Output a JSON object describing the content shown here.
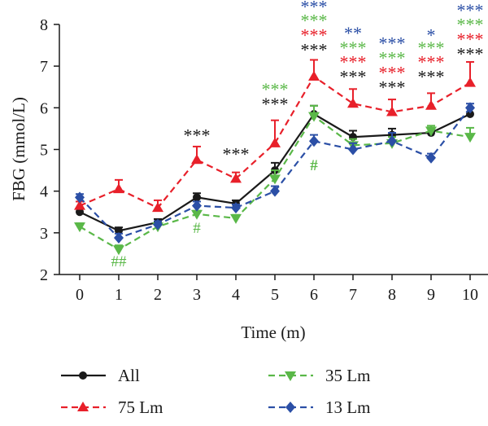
{
  "chart_data": {
    "type": "line",
    "ylabel": "FBG (mmol/L)",
    "xlabel": "Time (m)",
    "x": [
      0,
      1,
      2,
      3,
      4,
      5,
      6,
      7,
      8,
      9,
      10
    ],
    "xlim": [
      0,
      10
    ],
    "ylim": [
      2,
      8
    ],
    "yticks": [
      2,
      3,
      4,
      5,
      6,
      7,
      8
    ],
    "series": [
      {
        "name": "All",
        "color": "#1a1a1a",
        "dash": "solid",
        "marker": "circle",
        "values": [
          3.5,
          3.05,
          3.25,
          3.85,
          3.7,
          4.5,
          5.85,
          5.3,
          5.35,
          5.4,
          5.85
        ],
        "errors": [
          0.08,
          0.08,
          0.08,
          0.1,
          0.08,
          0.18,
          0.2,
          0.15,
          0.15,
          0.12,
          0.15
        ]
      },
      {
        "name": "75 Lm",
        "color": "#e8202a",
        "dash": "dashed",
        "marker": "triangle-up",
        "values": [
          3.65,
          4.05,
          3.6,
          4.75,
          4.3,
          5.15,
          6.75,
          6.1,
          5.9,
          6.05,
          6.6
        ],
        "errors": [
          0.1,
          0.22,
          0.18,
          0.32,
          0.15,
          0.55,
          0.4,
          0.35,
          0.3,
          0.3,
          0.5
        ]
      },
      {
        "name": "35 Lm",
        "color": "#5ab848",
        "dash": "dashed",
        "marker": "triangle-down",
        "values": [
          3.15,
          2.6,
          3.15,
          3.45,
          3.35,
          4.3,
          5.8,
          5.1,
          5.15,
          5.45,
          5.3
        ],
        "errors": [
          0.08,
          0.1,
          0.08,
          0.08,
          0.08,
          0.2,
          0.25,
          0.15,
          0.15,
          0.12,
          0.22
        ]
      },
      {
        "name": "13 Lm",
        "color": "#2b4fa6",
        "dash": "dashed",
        "marker": "diamond",
        "values": [
          3.85,
          2.88,
          3.2,
          3.65,
          3.6,
          4.0,
          5.2,
          5.0,
          5.2,
          4.8,
          6.0
        ],
        "errors": [
          0.08,
          0.1,
          0.08,
          0.1,
          0.08,
          0.12,
          0.15,
          0.15,
          0.2,
          0.1,
          0.1
        ]
      }
    ],
    "annotations": [
      {
        "x": 1,
        "y": 2.2,
        "text": "##",
        "color": "#5ab848"
      },
      {
        "x": 3,
        "y": 3.0,
        "text": "#",
        "color": "#5ab848"
      },
      {
        "x": 3,
        "y": 5.2,
        "text": "***",
        "color": "#1a1a1a"
      },
      {
        "x": 4,
        "y": 4.75,
        "text": "***",
        "color": "#1a1a1a"
      },
      {
        "x": 5,
        "y": 5.95,
        "text": "***",
        "color": "#1a1a1a"
      },
      {
        "x": 5,
        "y": 6.3,
        "text": "***",
        "color": "#5ab848"
      },
      {
        "x": 6,
        "y": 4.5,
        "text": "#",
        "color": "#5ab848"
      },
      {
        "x": 6,
        "y": 7.25,
        "text": "***",
        "color": "#1a1a1a"
      },
      {
        "x": 6,
        "y": 7.6,
        "text": "***",
        "color": "#e8202a"
      },
      {
        "x": 6,
        "y": 7.95,
        "text": "***",
        "color": "#5ab848"
      },
      {
        "x": 6,
        "y": 8.28,
        "text": "***",
        "color": "#2b4fa6"
      },
      {
        "x": 7,
        "y": 6.6,
        "text": "***",
        "color": "#1a1a1a"
      },
      {
        "x": 7,
        "y": 6.95,
        "text": "***",
        "color": "#e8202a"
      },
      {
        "x": 7,
        "y": 7.3,
        "text": "***",
        "color": "#5ab848"
      },
      {
        "x": 7,
        "y": 7.65,
        "text": "**",
        "color": "#2b4fa6"
      },
      {
        "x": 8,
        "y": 6.35,
        "text": "***",
        "color": "#1a1a1a"
      },
      {
        "x": 8,
        "y": 6.7,
        "text": "***",
        "color": "#e8202a"
      },
      {
        "x": 8,
        "y": 7.05,
        "text": "***",
        "color": "#5ab848"
      },
      {
        "x": 8,
        "y": 7.4,
        "text": "***",
        "color": "#2b4fa6"
      },
      {
        "x": 9,
        "y": 6.6,
        "text": "***",
        "color": "#1a1a1a"
      },
      {
        "x": 9,
        "y": 6.95,
        "text": "***",
        "color": "#e8202a"
      },
      {
        "x": 9,
        "y": 7.3,
        "text": "***",
        "color": "#5ab848"
      },
      {
        "x": 9,
        "y": 7.6,
        "text": "*",
        "color": "#2b4fa6"
      },
      {
        "x": 10,
        "y": 7.15,
        "text": "***",
        "color": "#1a1a1a"
      },
      {
        "x": 10,
        "y": 7.5,
        "text": "***",
        "color": "#e8202a"
      },
      {
        "x": 10,
        "y": 7.85,
        "text": "***",
        "color": "#5ab848"
      },
      {
        "x": 10,
        "y": 8.2,
        "text": "***",
        "color": "#2b4fa6"
      }
    ],
    "legend_position": "bottom"
  }
}
